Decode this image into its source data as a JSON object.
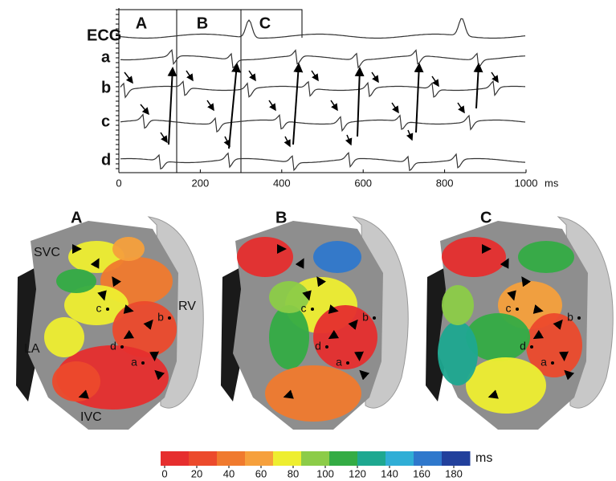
{
  "trace_panel": {
    "windows": [
      "A",
      "B",
      "C"
    ],
    "channels": [
      "ECG",
      "a",
      "b",
      "c",
      "d"
    ],
    "axis": {
      "ticks": [
        0,
        200,
        400,
        600,
        800,
        1000
      ],
      "unit": "ms"
    }
  },
  "maps": [
    {
      "label": "A",
      "structures": [
        "SVC",
        "RV",
        "LA",
        "IVC"
      ],
      "sites": [
        "a",
        "b",
        "c",
        "d"
      ]
    },
    {
      "label": "B",
      "sites": [
        "a",
        "b",
        "c",
        "d"
      ]
    },
    {
      "label": "C",
      "sites": [
        "a",
        "b",
        "c",
        "d"
      ]
    }
  ],
  "colorbar": {
    "ticks": [
      0,
      20,
      40,
      60,
      80,
      100,
      120,
      140,
      160,
      180
    ],
    "unit": "ms",
    "colors": [
      "#e62e2e",
      "#ec4a2c",
      "#f07a2e",
      "#f6a03c",
      "#eeee30",
      "#8ccc48",
      "#34ac44",
      "#1ea890",
      "#30aed6",
      "#2f78cc",
      "#22409c"
    ]
  }
}
